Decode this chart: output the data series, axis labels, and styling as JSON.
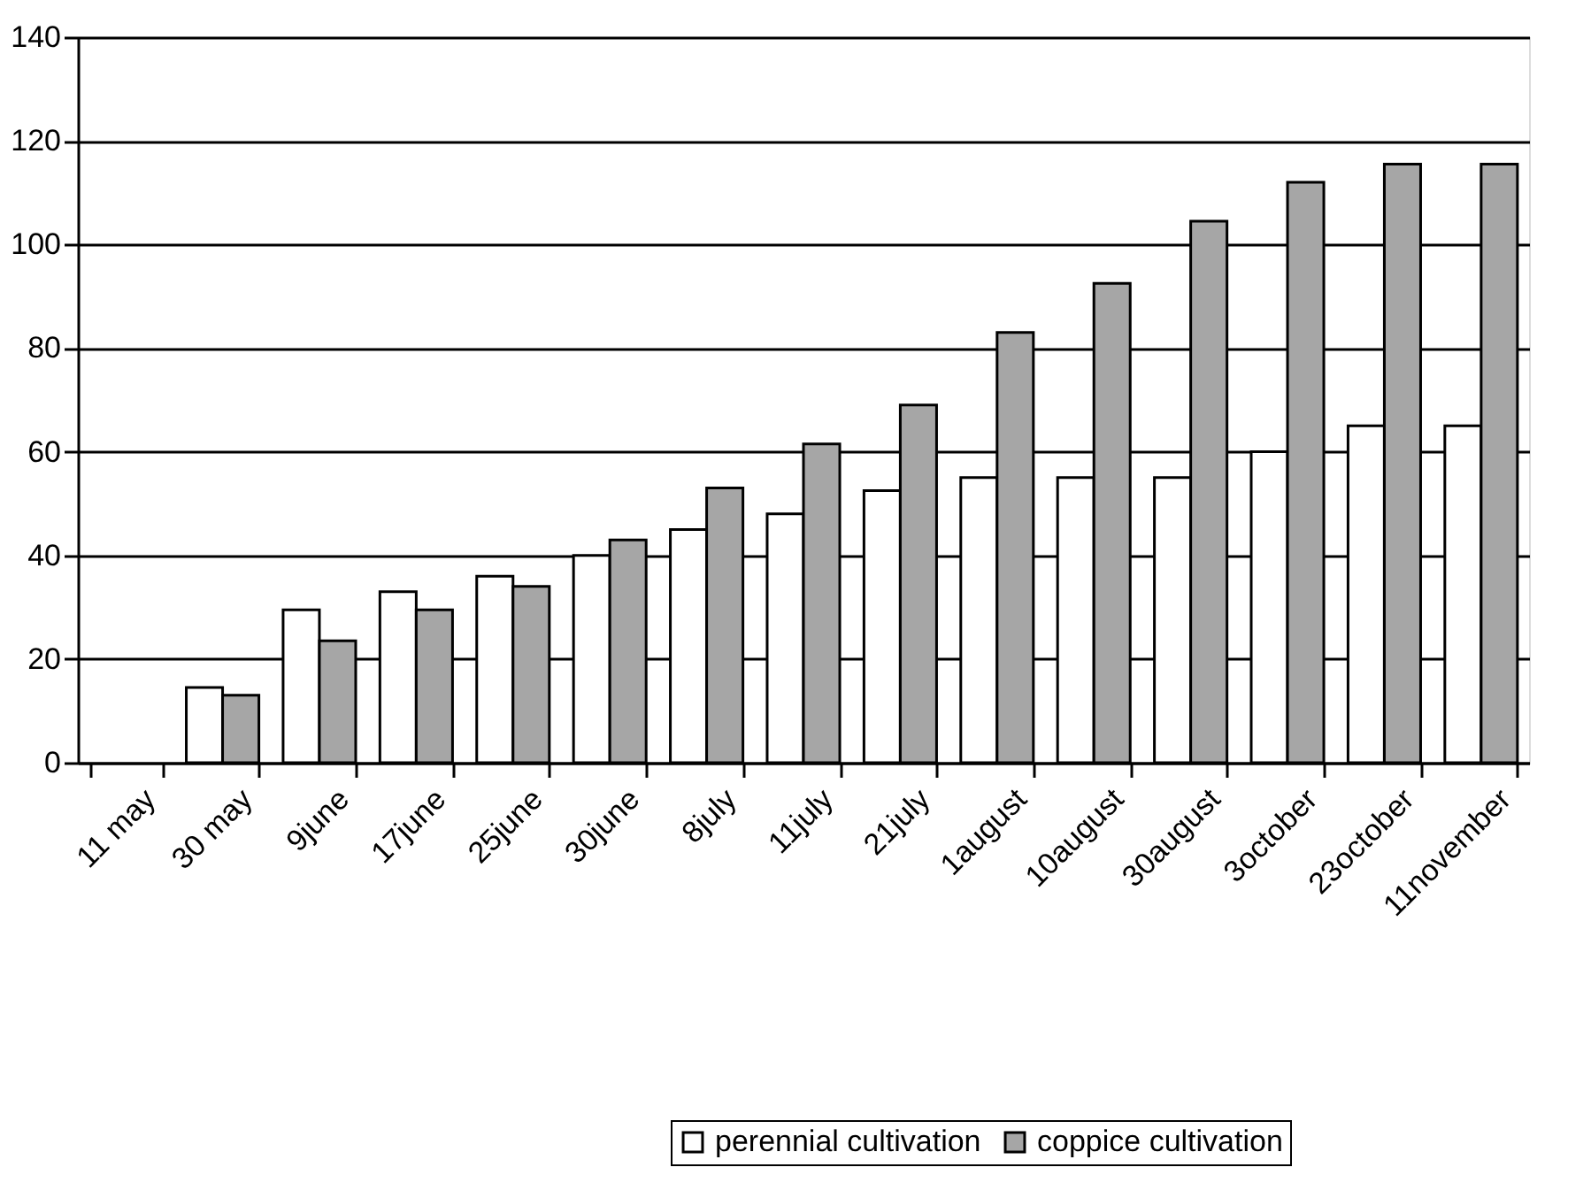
{
  "chart_data": {
    "type": "bar",
    "categories": [
      "11 may",
      "30 may",
      "9june",
      "17june",
      "25june",
      "30june",
      "8july",
      "11july",
      "21july",
      "1august",
      "10august",
      "30august",
      "3october",
      "23october",
      "11november"
    ],
    "series": [
      {
        "name": "perennial cultivation",
        "color": "#ffffff",
        "values": [
          null,
          14.5,
          29.5,
          33,
          36,
          40,
          45,
          48,
          52.5,
          55,
          55,
          55,
          60,
          65,
          65
        ]
      },
      {
        "name": "coppice cultivation",
        "color": "#a6a6a6",
        "values": [
          null,
          13,
          23.5,
          29.5,
          34,
          43,
          53,
          61.5,
          69,
          83,
          92.5,
          104.5,
          112,
          115.5,
          115.5
        ]
      }
    ],
    "ylim": [
      0,
      140
    ],
    "yticks": [
      0,
      20,
      40,
      60,
      80,
      100,
      120,
      140
    ],
    "grid": "y",
    "legend": "bottom right"
  }
}
